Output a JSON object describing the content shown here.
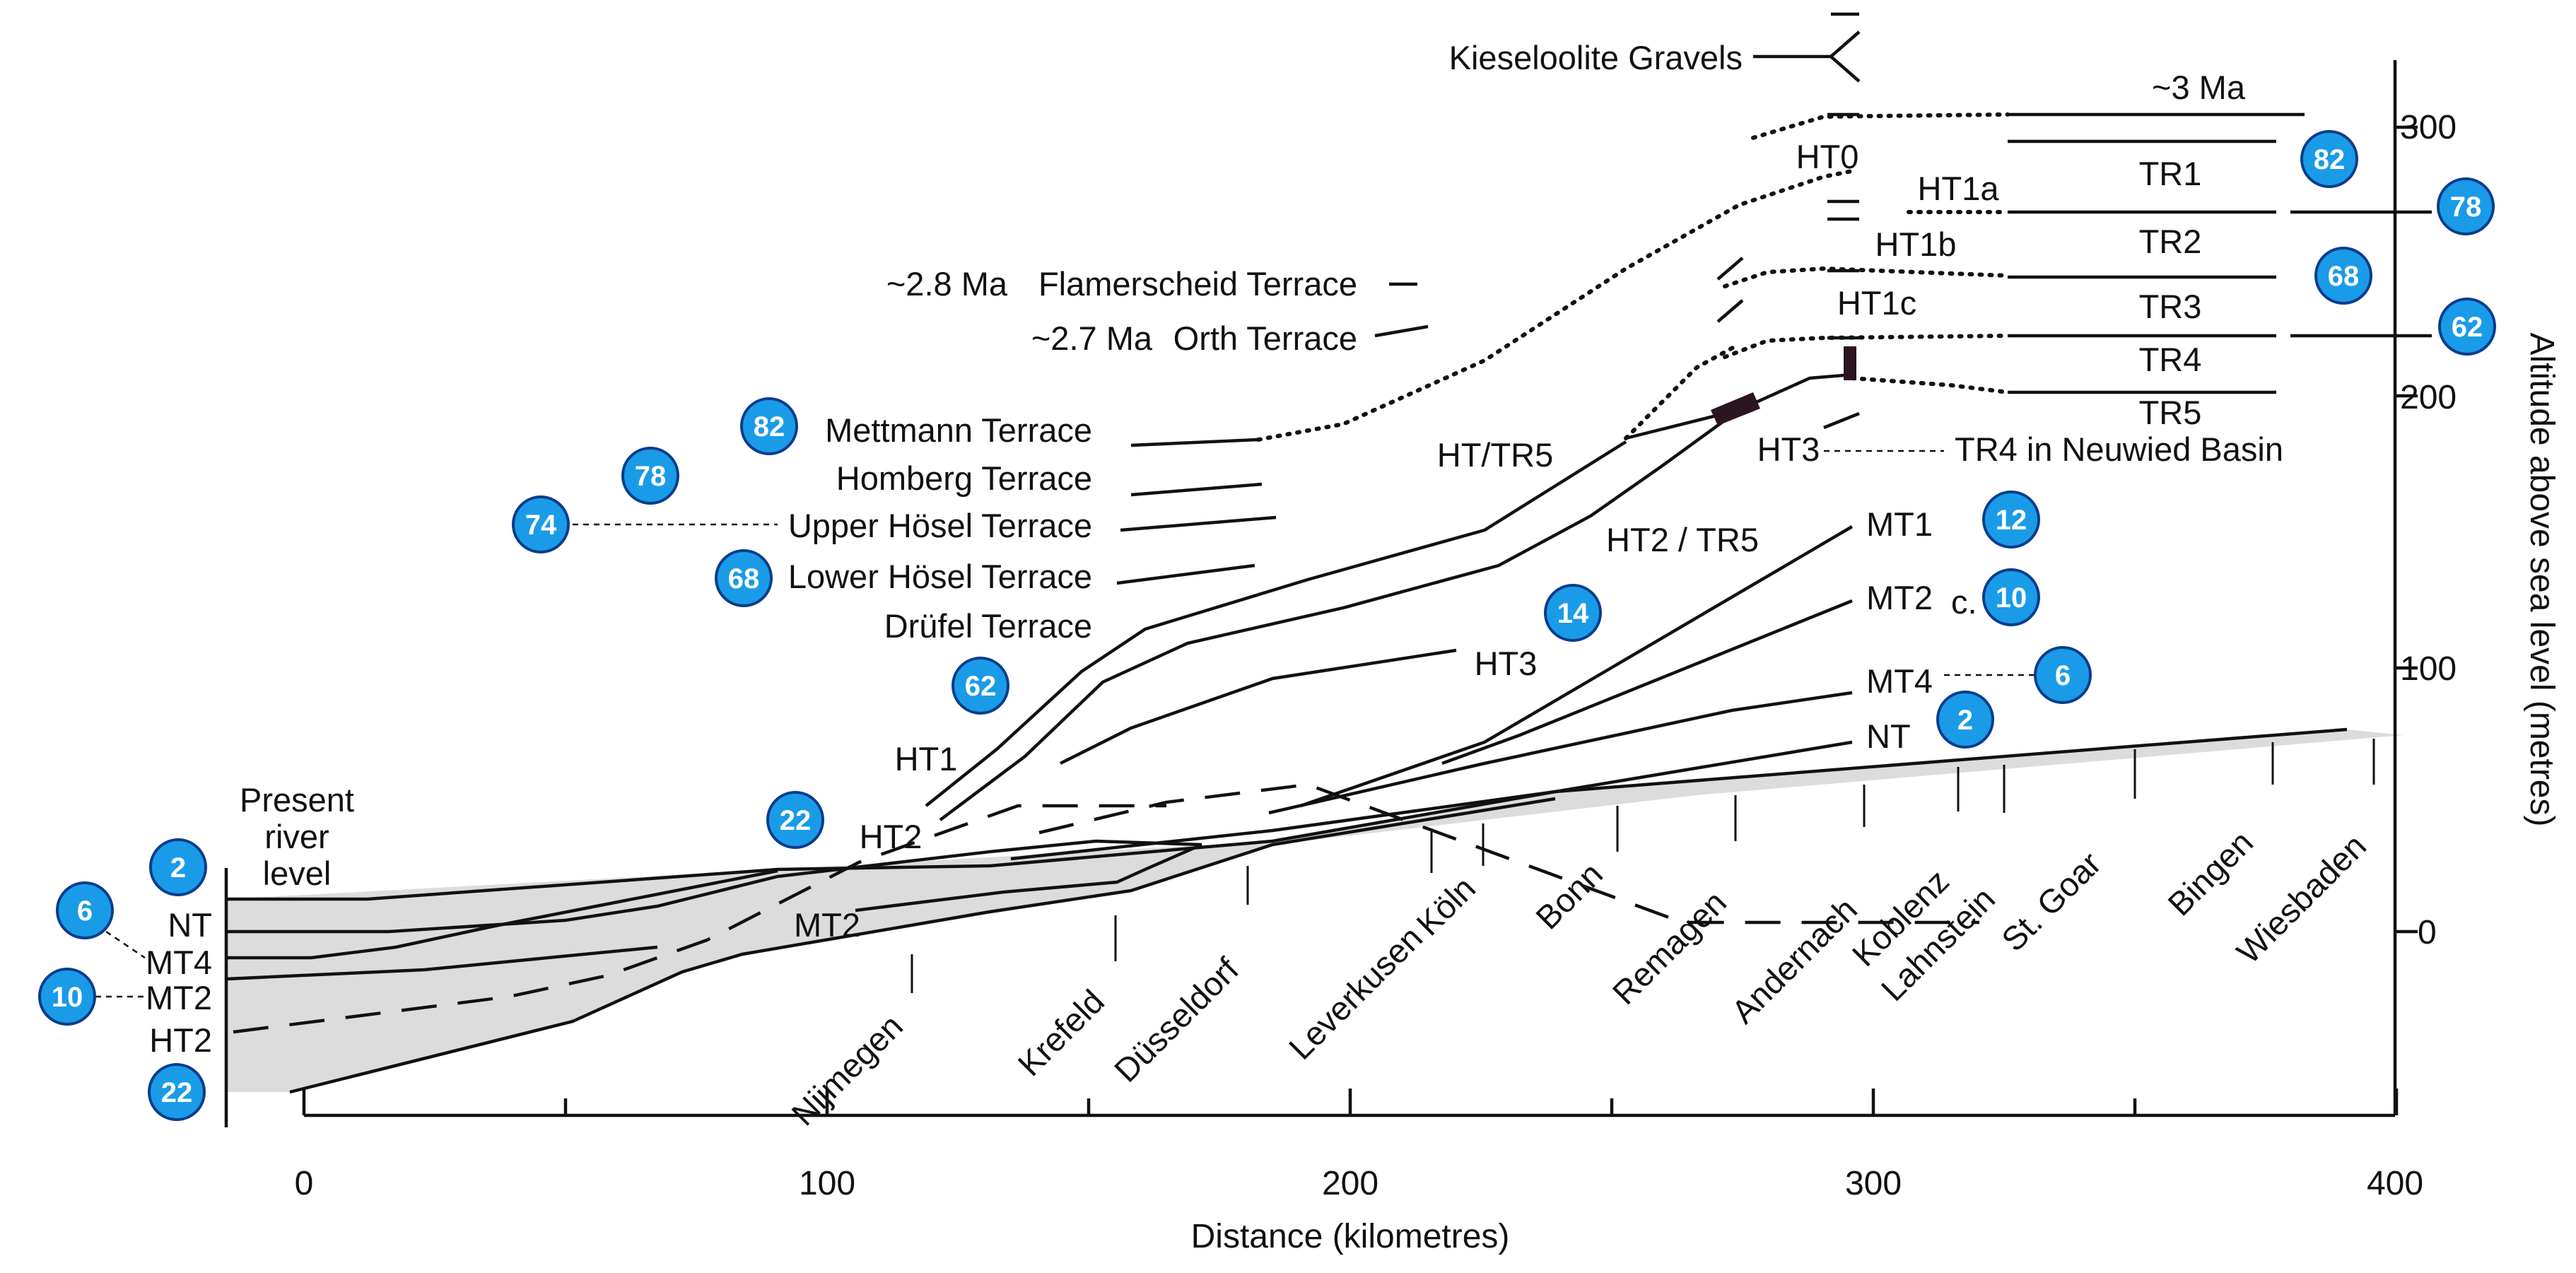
{
  "axes": {
    "x_title": "Distance (kilometres)",
    "y_title": "Altitude above sea level (metres)",
    "x_ticks": [
      "0",
      "100",
      "200",
      "300",
      "400"
    ],
    "y_ticks": [
      "0",
      "100",
      "200",
      "300"
    ]
  },
  "terrace_labels": {
    "kieseloolite": "Kieseloolite Gravels",
    "ma3": "~3 Ma",
    "ma28": "~2.8 Ma",
    "flamerscheid": "Flamerscheid Terrace",
    "ma27": "~2.7 Ma",
    "orth": "Orth Terrace",
    "mettmann": "Mettmann Terrace",
    "homberg": "Homberg Terrace",
    "upper_hosel": "Upper Hösel Terrace",
    "lower_hosel": "Lower Hösel Terrace",
    "drufel": "Drüfel Terrace",
    "ht0": "HT0",
    "ht1a": "HT1a",
    "ht1b": "HT1b",
    "ht1c": "HT1c",
    "tr1": "TR1",
    "tr2": "TR2",
    "tr3": "TR3",
    "tr4": "TR4",
    "tr5": "TR5",
    "ht3_top": "HT3",
    "tr4_neuwied": "TR4 in Neuwied Basin",
    "ht_tr5": "HT/TR5",
    "ht2_tr5": "HT2 / TR5",
    "mt1": "MT1",
    "mt2_right": "MT2",
    "c": "c.",
    "mt4_right": "MT4",
    "nt_right": "NT",
    "ht3_mid": "HT3",
    "ht1": "HT1",
    "ht2": "HT2",
    "mt2_mid": "MT2",
    "present_1": "Present",
    "present_2": "river",
    "present_3": "level",
    "nt_left": "NT",
    "mt4_left": "MT4",
    "mt2_left": "MT2",
    "ht2_left": "HT2"
  },
  "places": [
    "Nijmegen",
    "Krefeld",
    "Düsseldorf",
    "Leverkusen",
    "Köln",
    "Bonn",
    "Remagen",
    "Andernach",
    "Koblenz",
    "Lahnstein",
    "St. Goar",
    "Bingen",
    "Wiesbaden"
  ],
  "badges": [
    "82",
    "78",
    "74",
    "68",
    "62",
    "22",
    "2",
    "6",
    "10",
    "22",
    "14",
    "12",
    "10",
    "6",
    "2",
    "82",
    "78",
    "68",
    "62"
  ],
  "colors": {
    "badge_fill": "#1a9be8",
    "badge_stroke": "#0b3d8c",
    "fill_grey": "#dcdcdc",
    "marker": "#2a1520"
  }
}
